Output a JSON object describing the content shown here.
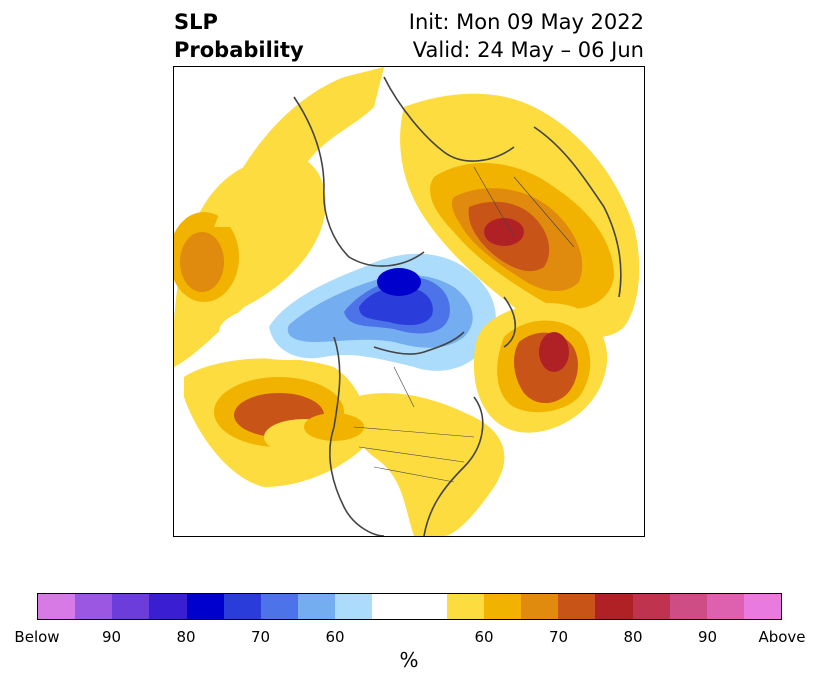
{
  "header": {
    "title_line1": "SLP",
    "title_line2": "Probability",
    "init_text": "Init: Mon 09 May 2022",
    "valid_text": "Valid: 24 May – 06 Jun"
  },
  "map": {
    "projection": "north-polar-stereographic",
    "variable": "Sea level pressure tercile probability",
    "features": [
      {
        "name": "north-pacific-below-anomaly",
        "category": "below",
        "prob_range": "70-90"
      },
      {
        "name": "arctic-below-anomaly",
        "category": "below",
        "prob_range": "80-90"
      },
      {
        "name": "siberia-above-anomaly",
        "category": "above",
        "prob_range": "70-80"
      },
      {
        "name": "north-atlantic-above-anomaly",
        "category": "above",
        "prob_range": "70-80"
      },
      {
        "name": "eastern-pacific-above-anomaly",
        "category": "above",
        "prob_range": "60-75"
      },
      {
        "name": "western-pacific-above-anomaly",
        "category": "above",
        "prob_range": "60-70"
      }
    ]
  },
  "colorbar": {
    "colors": [
      "#d77ae6",
      "#9b57e0",
      "#6c3ddb",
      "#3a1ed1",
      "#0000cc",
      "#2a3ddb",
      "#4c73e8",
      "#74aef0",
      "#acdcfb",
      "#ffffff",
      "#ffffff",
      "#fddc3f",
      "#f2b200",
      "#e08b0d",
      "#c85418",
      "#b02126",
      "#c0334e",
      "#ce4d85",
      "#dd61ae",
      "#e87ae0"
    ],
    "tick_labels": [
      "Below",
      "90",
      "80",
      "70",
      "60",
      "",
      "60",
      "70",
      "80",
      "90",
      "Above"
    ],
    "unit": "%"
  }
}
